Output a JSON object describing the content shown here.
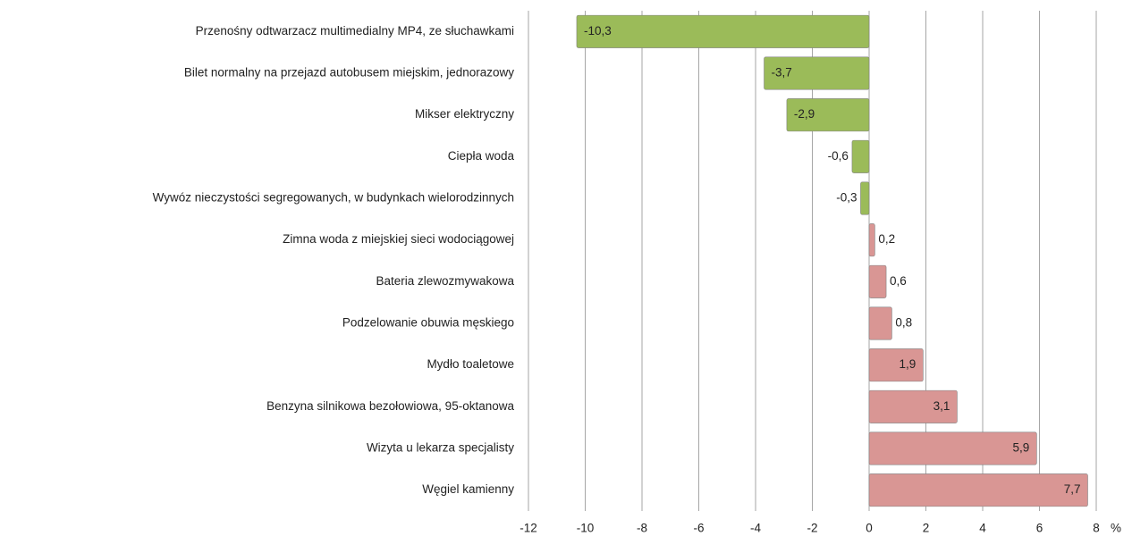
{
  "chart_data": {
    "type": "bar",
    "orientation": "horizontal",
    "categories": [
      "Przenośny odtwarzacz multimedialny MP4, ze słuchawkami",
      "Bilet normalny na przejazd autobusem miejskim, jednorazowy",
      "Mikser elektryczny",
      "Ciepła woda",
      "Wywóz nieczystości  segregowanych, w budynkach wielorodzinnych",
      "Zimna woda z miejskiej sieci wodociągowej",
      "Bateria zlewozmywakowa",
      "Podzelowanie obuwia męskiego",
      "Mydło toaletowe",
      "Benzyna silnikowa bezołowiowa, 95-oktanowa",
      "Wizyta u lekarza specjalisty",
      "Węgiel kamienny"
    ],
    "values": [
      -10.3,
      -3.7,
      -2.9,
      -0.6,
      -0.3,
      0.2,
      0.6,
      0.8,
      1.9,
      3.1,
      5.9,
      7.7
    ],
    "value_labels": [
      "-10,3",
      "-3,7",
      "-2,9",
      "-0,6",
      "-0,3",
      "0,2",
      "0,6",
      "0,8",
      "1,9",
      "3,1",
      "5,9",
      "7,7"
    ],
    "negative_color": "#9bbb59",
    "positive_color": "#d99694",
    "xlim": [
      -12,
      8
    ],
    "xticks": [
      -12,
      -10,
      -8,
      -6,
      -4,
      -2,
      0,
      2,
      4,
      6,
      8
    ],
    "xlabel": "%",
    "grid": true
  }
}
